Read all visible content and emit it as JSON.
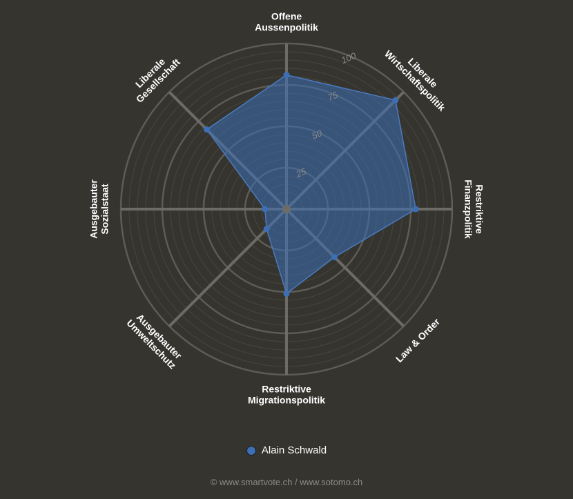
{
  "chart_data": {
    "type": "radar",
    "axes": [
      [
        "Offene",
        "Aussenpolitik"
      ],
      [
        "Liberale",
        "Wirtschaftspolitik"
      ],
      [
        "Restriktive",
        "Finanzpolitik"
      ],
      [
        "Law & Order"
      ],
      [
        "Restriktive",
        "Migrationspolitik"
      ],
      [
        "Ausgebauter",
        "Umweltschutz"
      ],
      [
        "Ausgebauter",
        "Sozialstaat"
      ],
      [
        "Liberale",
        "Gesellschaft"
      ]
    ],
    "series": [
      {
        "name": "Alain Schwald",
        "values": [
          81,
          93,
          78,
          41,
          51,
          17,
          13,
          68
        ],
        "color": "#3d6fb6"
      }
    ],
    "rlim": [
      0,
      100
    ],
    "ticks": [
      25,
      50,
      75,
      100
    ],
    "grid": true,
    "legend_position": "bottom-center"
  },
  "legend": {
    "label": "Alain Schwald"
  },
  "footer": {
    "credit": "© www.smartvote.ch / www.sotomo.ch"
  },
  "colors": {
    "background": "#36342f",
    "grid_minor": "#45433e",
    "grid_major": "#5e5c57",
    "spoke": "#6d6b66",
    "series_fill": "#3d6fb6",
    "series_stroke": "#4a7bc0"
  }
}
